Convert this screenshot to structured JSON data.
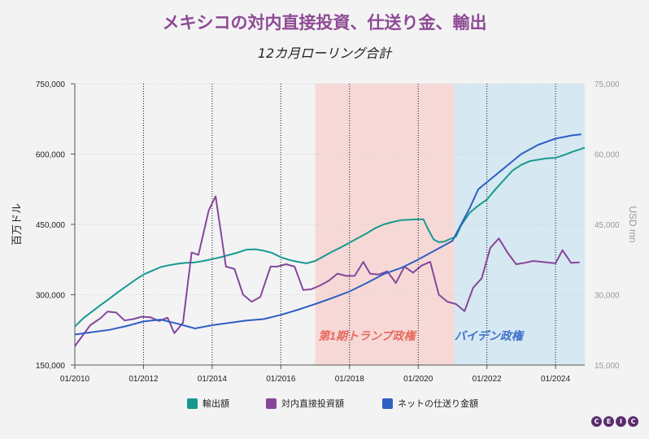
{
  "title": "メキシコの対内直接投資、仕送り金、輸出",
  "subtitle": "12カ月ローリング合計",
  "logo": [
    "C",
    "E",
    "I",
    "C"
  ],
  "colors": {
    "exports": "#17998f",
    "fdi": "#86479a",
    "remit": "#2f5fc4",
    "trump_band": "#f6d9d6",
    "biden_band": "#d6e8f1",
    "trump_text": "#e86a5e",
    "biden_text": "#3e6fcc"
  },
  "chart_data": {
    "type": "line",
    "x_tick_labels": [
      "01/2010",
      "01/2012",
      "01/2014",
      "01/2016",
      "01/2018",
      "01/2020",
      "01/2022",
      "01/2024"
    ],
    "x_range": [
      2010.0,
      2024.85
    ],
    "y_left": {
      "label": "百万ドル",
      "range": [
        150000,
        750000
      ],
      "tick_labels": [
        "150,000",
        "300,000",
        "450,000",
        "600,000",
        "750,000"
      ],
      "ticks": [
        150000,
        300000,
        450000,
        600000,
        750000
      ]
    },
    "y_right": {
      "label": "USD mn",
      "range": [
        15000,
        75000
      ],
      "tick_labels": [
        "15,000",
        "30,000",
        "45,000",
        "60,000",
        "75,000"
      ],
      "ticks": [
        15000,
        30000,
        45000,
        60000,
        75000
      ]
    },
    "bands": [
      {
        "label": "第1期トランプ政権",
        "from": 2017.0,
        "to": 2021.05
      },
      {
        "label": "バイデン政権",
        "from": 2021.05,
        "to": 2024.85
      }
    ],
    "series": [
      {
        "name": "輸出額",
        "axis": "left",
        "key": "exports",
        "points": [
          [
            2010.0,
            232000
          ],
          [
            2010.25,
            250000
          ],
          [
            2010.5,
            264000
          ],
          [
            2010.75,
            278000
          ],
          [
            2011.0,
            291000
          ],
          [
            2011.25,
            305000
          ],
          [
            2011.5,
            318000
          ],
          [
            2011.75,
            331000
          ],
          [
            2012.0,
            343000
          ],
          [
            2012.25,
            351000
          ],
          [
            2012.5,
            359000
          ],
          [
            2012.75,
            363000
          ],
          [
            2013.0,
            366000
          ],
          [
            2013.25,
            368000
          ],
          [
            2013.5,
            369000
          ],
          [
            2013.75,
            372000
          ],
          [
            2014.0,
            376000
          ],
          [
            2014.25,
            380000
          ],
          [
            2014.5,
            385000
          ],
          [
            2014.75,
            390000
          ],
          [
            2015.0,
            396000
          ],
          [
            2015.25,
            397000
          ],
          [
            2015.5,
            394000
          ],
          [
            2015.75,
            389000
          ],
          [
            2016.0,
            380000
          ],
          [
            2016.25,
            374000
          ],
          [
            2016.5,
            370000
          ],
          [
            2016.75,
            367000
          ],
          [
            2017.0,
            372000
          ],
          [
            2017.25,
            382000
          ],
          [
            2017.5,
            392000
          ],
          [
            2017.75,
            401000
          ],
          [
            2018.0,
            411000
          ],
          [
            2018.25,
            421000
          ],
          [
            2018.5,
            431000
          ],
          [
            2018.75,
            442000
          ],
          [
            2019.0,
            450000
          ],
          [
            2019.25,
            455000
          ],
          [
            2019.5,
            459000
          ],
          [
            2019.75,
            460000
          ],
          [
            2020.0,
            461000
          ],
          [
            2020.15,
            461000
          ],
          [
            2020.3,
            438000
          ],
          [
            2020.45,
            418000
          ],
          [
            2020.6,
            412000
          ],
          [
            2020.75,
            413000
          ],
          [
            2020.9,
            418000
          ],
          [
            2021.1,
            424000
          ],
          [
            2021.25,
            448000
          ],
          [
            2021.5,
            475000
          ],
          [
            2021.75,
            490000
          ],
          [
            2022.0,
            503000
          ],
          [
            2022.25,
            525000
          ],
          [
            2022.5,
            545000
          ],
          [
            2022.75,
            565000
          ],
          [
            2023.0,
            577000
          ],
          [
            2023.25,
            585000
          ],
          [
            2023.5,
            588000
          ],
          [
            2023.75,
            591000
          ],
          [
            2024.0,
            592000
          ],
          [
            2024.25,
            598000
          ],
          [
            2024.5,
            605000
          ],
          [
            2024.75,
            611000
          ],
          [
            2024.85,
            614000
          ]
        ]
      },
      {
        "name": "対内直接投資額",
        "axis": "right",
        "key": "fdi",
        "points": [
          [
            2010.0,
            19000
          ],
          [
            2010.2,
            21000
          ],
          [
            2010.45,
            23500
          ],
          [
            2010.75,
            25000
          ],
          [
            2010.95,
            26400
          ],
          [
            2011.2,
            26200
          ],
          [
            2011.45,
            24500
          ],
          [
            2011.7,
            24800
          ],
          [
            2011.95,
            25300
          ],
          [
            2012.2,
            25200
          ],
          [
            2012.45,
            24400
          ],
          [
            2012.7,
            25100
          ],
          [
            2012.9,
            21800
          ],
          [
            2013.15,
            24000
          ],
          [
            2013.4,
            39000
          ],
          [
            2013.6,
            38500
          ],
          [
            2013.9,
            48000
          ],
          [
            2014.1,
            51000
          ],
          [
            2014.4,
            36000
          ],
          [
            2014.65,
            35500
          ],
          [
            2014.9,
            30000
          ],
          [
            2015.15,
            28500
          ],
          [
            2015.4,
            29500
          ],
          [
            2015.7,
            36000
          ],
          [
            2015.9,
            36000
          ],
          [
            2016.15,
            36500
          ],
          [
            2016.4,
            36000
          ],
          [
            2016.65,
            31000
          ],
          [
            2016.9,
            31200
          ],
          [
            2017.15,
            32000
          ],
          [
            2017.4,
            33000
          ],
          [
            2017.65,
            34500
          ],
          [
            2017.9,
            34000
          ],
          [
            2018.15,
            34000
          ],
          [
            2018.4,
            37000
          ],
          [
            2018.6,
            34500
          ],
          [
            2018.85,
            34300
          ],
          [
            2019.1,
            35000
          ],
          [
            2019.35,
            32500
          ],
          [
            2019.6,
            36000
          ],
          [
            2019.85,
            34700
          ],
          [
            2020.1,
            36200
          ],
          [
            2020.35,
            37000
          ],
          [
            2020.6,
            30000
          ],
          [
            2020.85,
            28500
          ],
          [
            2021.1,
            28000
          ],
          [
            2021.35,
            26500
          ],
          [
            2021.6,
            31500
          ],
          [
            2021.85,
            33500
          ],
          [
            2022.1,
            40000
          ],
          [
            2022.35,
            42000
          ],
          [
            2022.6,
            39000
          ],
          [
            2022.85,
            36500
          ],
          [
            2023.1,
            36800
          ],
          [
            2023.35,
            37200
          ],
          [
            2023.6,
            37000
          ],
          [
            2023.85,
            36800
          ],
          [
            2024.0,
            36700
          ],
          [
            2024.2,
            39500
          ],
          [
            2024.45,
            36800
          ],
          [
            2024.7,
            36900
          ]
        ]
      },
      {
        "name": "ネットの仕送り金額",
        "axis": "right",
        "key": "remit",
        "points": [
          [
            2010.0,
            21500
          ],
          [
            2010.5,
            22000
          ],
          [
            2011.0,
            22500
          ],
          [
            2011.5,
            23300
          ],
          [
            2012.0,
            24300
          ],
          [
            2012.5,
            24700
          ],
          [
            2013.0,
            23800
          ],
          [
            2013.5,
            22800
          ],
          [
            2014.0,
            23500
          ],
          [
            2014.5,
            24000
          ],
          [
            2015.0,
            24500
          ],
          [
            2015.5,
            24800
          ],
          [
            2016.0,
            25700
          ],
          [
            2016.5,
            26800
          ],
          [
            2017.0,
            28000
          ],
          [
            2017.5,
            29300
          ],
          [
            2018.0,
            30700
          ],
          [
            2018.5,
            32500
          ],
          [
            2019.0,
            34400
          ],
          [
            2019.5,
            35700
          ],
          [
            2020.0,
            37500
          ],
          [
            2020.5,
            39500
          ],
          [
            2021.0,
            41500
          ],
          [
            2021.25,
            45000
          ],
          [
            2021.5,
            48500
          ],
          [
            2021.75,
            52500
          ],
          [
            2022.0,
            54000
          ],
          [
            2022.5,
            57000
          ],
          [
            2023.0,
            60000
          ],
          [
            2023.5,
            62000
          ],
          [
            2024.0,
            63300
          ],
          [
            2024.5,
            64000
          ],
          [
            2024.75,
            64200
          ]
        ]
      }
    ]
  },
  "legend": [
    {
      "key": "exports",
      "label": "輸出額"
    },
    {
      "key": "fdi",
      "label": "対内直接投資額"
    },
    {
      "key": "remit",
      "label": "ネットの仕送り金額"
    }
  ]
}
